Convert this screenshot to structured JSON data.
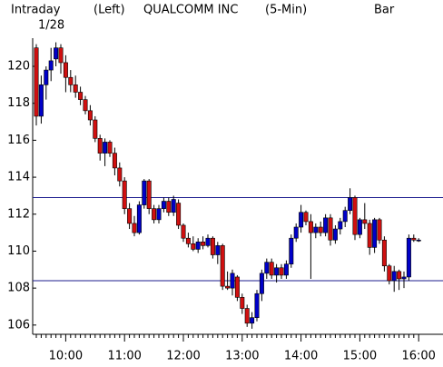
{
  "chart_data": {
    "type": "candlestick",
    "header": [
      "Intraday",
      "(Left)",
      "QUALCOMM INC",
      "(5-Min)",
      "Bar"
    ],
    "date": "1/28",
    "categories": [
      null,
      null,
      null,
      null,
      null,
      null,
      "10:00",
      null,
      null,
      null,
      null,
      null,
      null,
      null,
      null,
      null,
      null,
      null,
      "11:00",
      null,
      null,
      null,
      null,
      null,
      null,
      null,
      null,
      null,
      null,
      null,
      "12:00",
      null,
      null,
      null,
      null,
      null,
      null,
      null,
      null,
      null,
      null,
      null,
      "13:00",
      null,
      null,
      null,
      null,
      null,
      null,
      null,
      null,
      null,
      null,
      null,
      "14:00",
      null,
      null,
      null,
      null,
      null,
      null,
      null,
      null,
      null,
      null,
      null,
      "15:00",
      null,
      null,
      null,
      null,
      null,
      null,
      null,
      null,
      null,
      null,
      null,
      "16:00"
    ],
    "open": [
      121,
      117.3,
      119.0,
      119.8,
      120.4,
      121.0,
      120.2,
      119.4,
      119.0,
      118.6,
      118.2,
      117.6,
      117.1,
      116.1,
      115.3,
      115.9,
      115.3,
      114.5,
      113.8,
      112.3,
      111.5,
      111.0,
      112.5,
      113.8,
      112.3,
      111.7,
      112.3,
      112.7,
      112.1,
      112.6,
      111.4,
      110.7,
      110.4,
      110.1,
      110.5,
      110.3,
      110.7,
      109.8,
      110.3,
      108.1,
      108.0,
      108.6,
      107.5,
      106.9,
      106.1,
      106.4,
      107.7,
      108.8,
      109.4,
      108.7,
      109.1,
      108.7,
      109.3,
      110.7,
      111.3,
      112.1,
      111.6,
      111.0,
      111.3,
      111.0,
      111.8,
      110.6,
      111.2,
      111.6,
      112.2,
      112.9,
      110.9,
      111.7,
      111.5,
      110.2,
      111.7,
      110.6,
      109.2,
      108.4,
      108.9,
      108.5,
      108.6,
      110.7,
      110.6
    ],
    "high": [
      121.2,
      119.5,
      120.0,
      121.0,
      121.3,
      121.2,
      120.6,
      119.8,
      119.5,
      118.9,
      118.4,
      117.9,
      117.3,
      116.3,
      116.1,
      116.0,
      115.6,
      114.8,
      114.0,
      112.6,
      111.9,
      112.7,
      113.9,
      113.9,
      112.5,
      112.5,
      112.9,
      112.9,
      113.0,
      112.8,
      111.5,
      111.0,
      110.8,
      110.7,
      110.8,
      110.9,
      110.8,
      110.5,
      110.4,
      108.9,
      109.0,
      108.7,
      107.7,
      107.1,
      106.7,
      107.9,
      109.0,
      109.6,
      109.6,
      109.3,
      109.3,
      109.5,
      110.9,
      111.5,
      112.5,
      112.2,
      112.0,
      111.5,
      111.6,
      112.0,
      112.0,
      111.4,
      111.8,
      112.4,
      113.4,
      113.0,
      111.8,
      112.6,
      111.7,
      111.8,
      111.8,
      110.8,
      109.3,
      109.2,
      109.0,
      108.9,
      110.9,
      110.9,
      110.7
    ],
    "low": [
      116.8,
      116.9,
      118.2,
      119.2,
      120.0,
      119.6,
      118.6,
      118.6,
      118.3,
      117.9,
      117.4,
      116.8,
      115.9,
      114.9,
      114.6,
      115.1,
      114.1,
      113.5,
      112.0,
      111.2,
      110.8,
      110.9,
      112.3,
      112.0,
      111.5,
      111.5,
      112.1,
      111.9,
      111.9,
      111.2,
      110.5,
      110.2,
      110.0,
      109.9,
      110.1,
      110.2,
      109.6,
      109.3,
      107.9,
      107.9,
      107.6,
      107.3,
      106.6,
      105.9,
      105.8,
      106.2,
      107.3,
      108.5,
      108.5,
      108.3,
      108.5,
      108.5,
      109.1,
      110.5,
      111.0,
      111.4,
      108.5,
      110.7,
      110.8,
      110.8,
      110.3,
      110.4,
      110.9,
      111.3,
      112.0,
      110.6,
      110.7,
      111.2,
      109.8,
      109.9,
      110.4,
      108.9,
      108.2,
      107.8,
      107.9,
      108.0,
      108.4,
      110.5,
      110.5
    ],
    "close": [
      117.3,
      119.0,
      119.8,
      120.3,
      121.0,
      120.2,
      119.4,
      119.0,
      118.6,
      118.2,
      117.6,
      117.1,
      116.1,
      115.3,
      115.9,
      115.3,
      114.5,
      113.8,
      112.3,
      111.5,
      111.0,
      112.5,
      113.8,
      112.3,
      111.7,
      112.3,
      112.7,
      112.1,
      112.8,
      111.4,
      110.7,
      110.4,
      110.1,
      110.5,
      110.3,
      110.7,
      109.8,
      110.3,
      108.1,
      108.0,
      108.8,
      107.5,
      106.9,
      106.1,
      106.4,
      107.7,
      108.8,
      109.4,
      108.7,
      109.1,
      108.7,
      109.3,
      110.7,
      111.3,
      112.1,
      111.6,
      111.0,
      111.3,
      111.0,
      111.8,
      110.6,
      111.2,
      111.6,
      112.2,
      112.9,
      110.9,
      111.7,
      111.5,
      110.2,
      111.7,
      110.6,
      109.2,
      108.4,
      108.9,
      108.5,
      108.6,
      110.7,
      110.6,
      110.6
    ],
    "up_color": "#0000c8",
    "down_color": "#d01010",
    "reference_lines": {
      "values": [
        112.9,
        108.4
      ],
      "color": "#1c1c8e"
    },
    "ylim": [
      105.5,
      121.5
    ],
    "yticks": [
      106,
      108,
      110,
      112,
      114,
      116,
      118,
      120
    ]
  }
}
